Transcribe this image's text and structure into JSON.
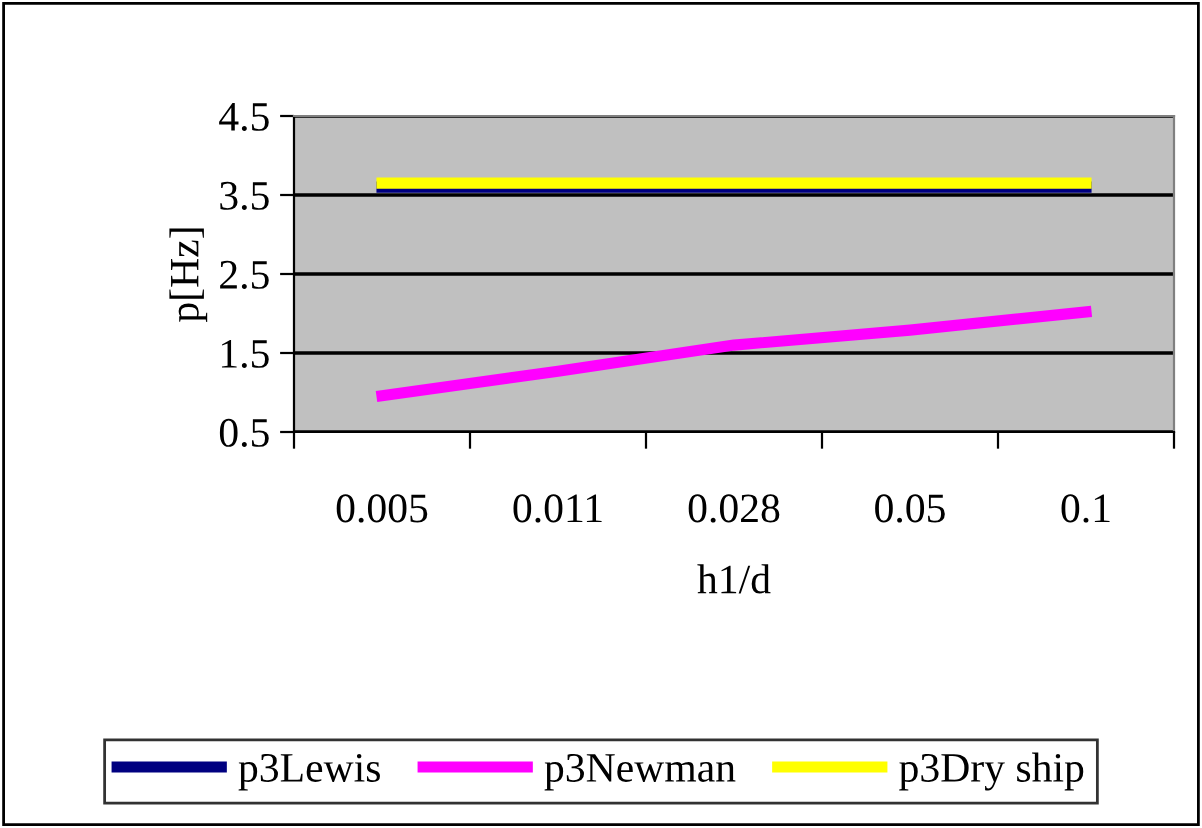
{
  "chart_data": {
    "type": "line",
    "xlabel": "h1/d",
    "ylabel": "p[Hz]",
    "categories": [
      "0.005",
      "0.011",
      "0.028",
      "0.05",
      "0.1"
    ],
    "series": [
      {
        "name": "p3Lewis",
        "color": "#000080",
        "values": [
          3.6,
          3.6,
          3.6,
          3.6,
          3.6
        ]
      },
      {
        "name": "p3Newman",
        "color": "#ff00ff",
        "values": [
          0.96,
          1.27,
          1.6,
          1.79,
          2.02
        ]
      },
      {
        "name": "p3Dry ship",
        "color": "#ffff00",
        "values": [
          3.65,
          3.65,
          3.65,
          3.65,
          3.65
        ]
      }
    ],
    "ylim": [
      0.5,
      4.5
    ],
    "yticks": [
      0.5,
      1.5,
      2.5,
      3.5,
      4.5
    ],
    "grid": "y",
    "legend": "bottom",
    "marker": "none",
    "line_style": "solid"
  }
}
